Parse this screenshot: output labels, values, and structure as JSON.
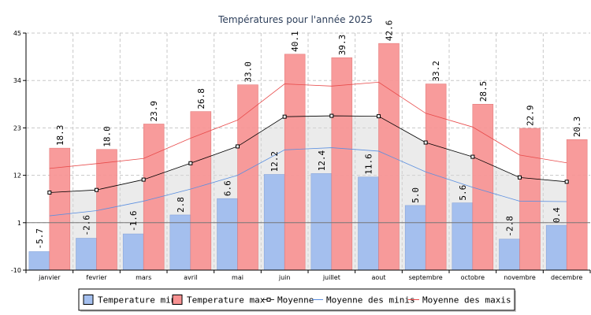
{
  "chart_data": {
    "type": "bar",
    "title": "Températures pour l'année 2025",
    "categories": [
      "janvier",
      "fevrier",
      "mars",
      "avril",
      "mai",
      "juin",
      "juillet",
      "aout",
      "septembre",
      "octobre",
      "novembre",
      "decembre"
    ],
    "ylim": [
      -10,
      45
    ],
    "yticks": [
      -10,
      1,
      12,
      23,
      34,
      45
    ],
    "grid": true,
    "legend_position": "bottom",
    "series": [
      {
        "name": "Temperature min",
        "kind": "bar",
        "color": "#a4bfee",
        "values": [
          -5.7,
          -2.6,
          -1.6,
          2.8,
          6.6,
          12.2,
          12.4,
          11.6,
          5.0,
          5.6,
          -2.8,
          0.4
        ],
        "labels": [
          "-5.7",
          "-2.6",
          "-1.6",
          "2.8",
          "6.6",
          "12.2",
          "12.4",
          "11.6",
          "5.0",
          "5.6",
          "-2.8",
          "0.4"
        ]
      },
      {
        "name": "Temperature max",
        "kind": "bar",
        "color": "#f79292",
        "values": [
          18.3,
          18.0,
          23.9,
          26.8,
          33.0,
          40.1,
          39.3,
          42.6,
          33.2,
          28.5,
          22.9,
          20.3
        ],
        "labels": [
          "18.3",
          "18.0",
          "23.9",
          "26.8",
          "33.0",
          "40.1",
          "39.3",
          "42.6",
          "33.2",
          "28.5",
          "22.9",
          "20.3"
        ]
      },
      {
        "name": "Moyenne",
        "kind": "line",
        "color": "#000000",
        "values": [
          8.0,
          8.6,
          11.0,
          14.8,
          18.7,
          25.6,
          25.8,
          25.7,
          19.6,
          16.3,
          11.5,
          10.5
        ]
      },
      {
        "name": "Moyenne des minis",
        "kind": "line",
        "color": "#5b8fe0",
        "values": [
          2.6,
          3.8,
          6.0,
          8.8,
          12.0,
          17.9,
          18.4,
          17.6,
          12.8,
          9.2,
          6.0,
          5.9
        ]
      },
      {
        "name": "Moyenne des maxis",
        "kind": "line",
        "color": "#e84a4a",
        "values": [
          13.6,
          14.7,
          15.9,
          20.6,
          24.8,
          33.2,
          32.7,
          33.6,
          26.4,
          23.2,
          16.7,
          14.9
        ]
      }
    ],
    "reference_line": 1
  }
}
